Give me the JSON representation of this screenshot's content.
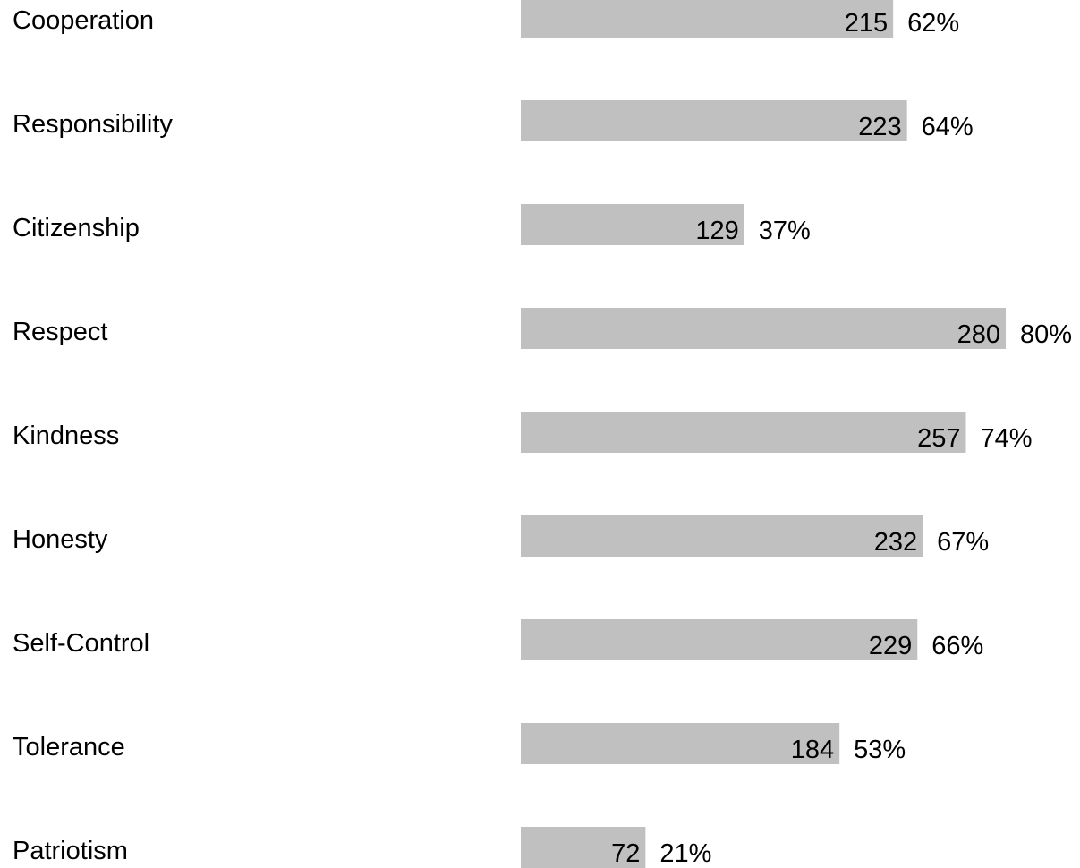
{
  "chart_data": {
    "type": "bar",
    "orientation": "horizontal",
    "categories": [
      "Cooperation",
      "Responsibility",
      "Citizenship",
      "Respect",
      "Kindness",
      "Honesty",
      "Self-Control",
      "Tolerance",
      "Patriotism"
    ],
    "values": [
      215,
      223,
      129,
      280,
      257,
      232,
      229,
      184,
      72
    ],
    "percent_labels": [
      "62%",
      "64%",
      "37%",
      "80%",
      "74%",
      "67%",
      "66%",
      "53%",
      "21%"
    ],
    "xlim": [
      0,
      280
    ],
    "grid": false,
    "legend": "none",
    "bar_color": "#c0c0c0",
    "text_color": "#000000"
  }
}
